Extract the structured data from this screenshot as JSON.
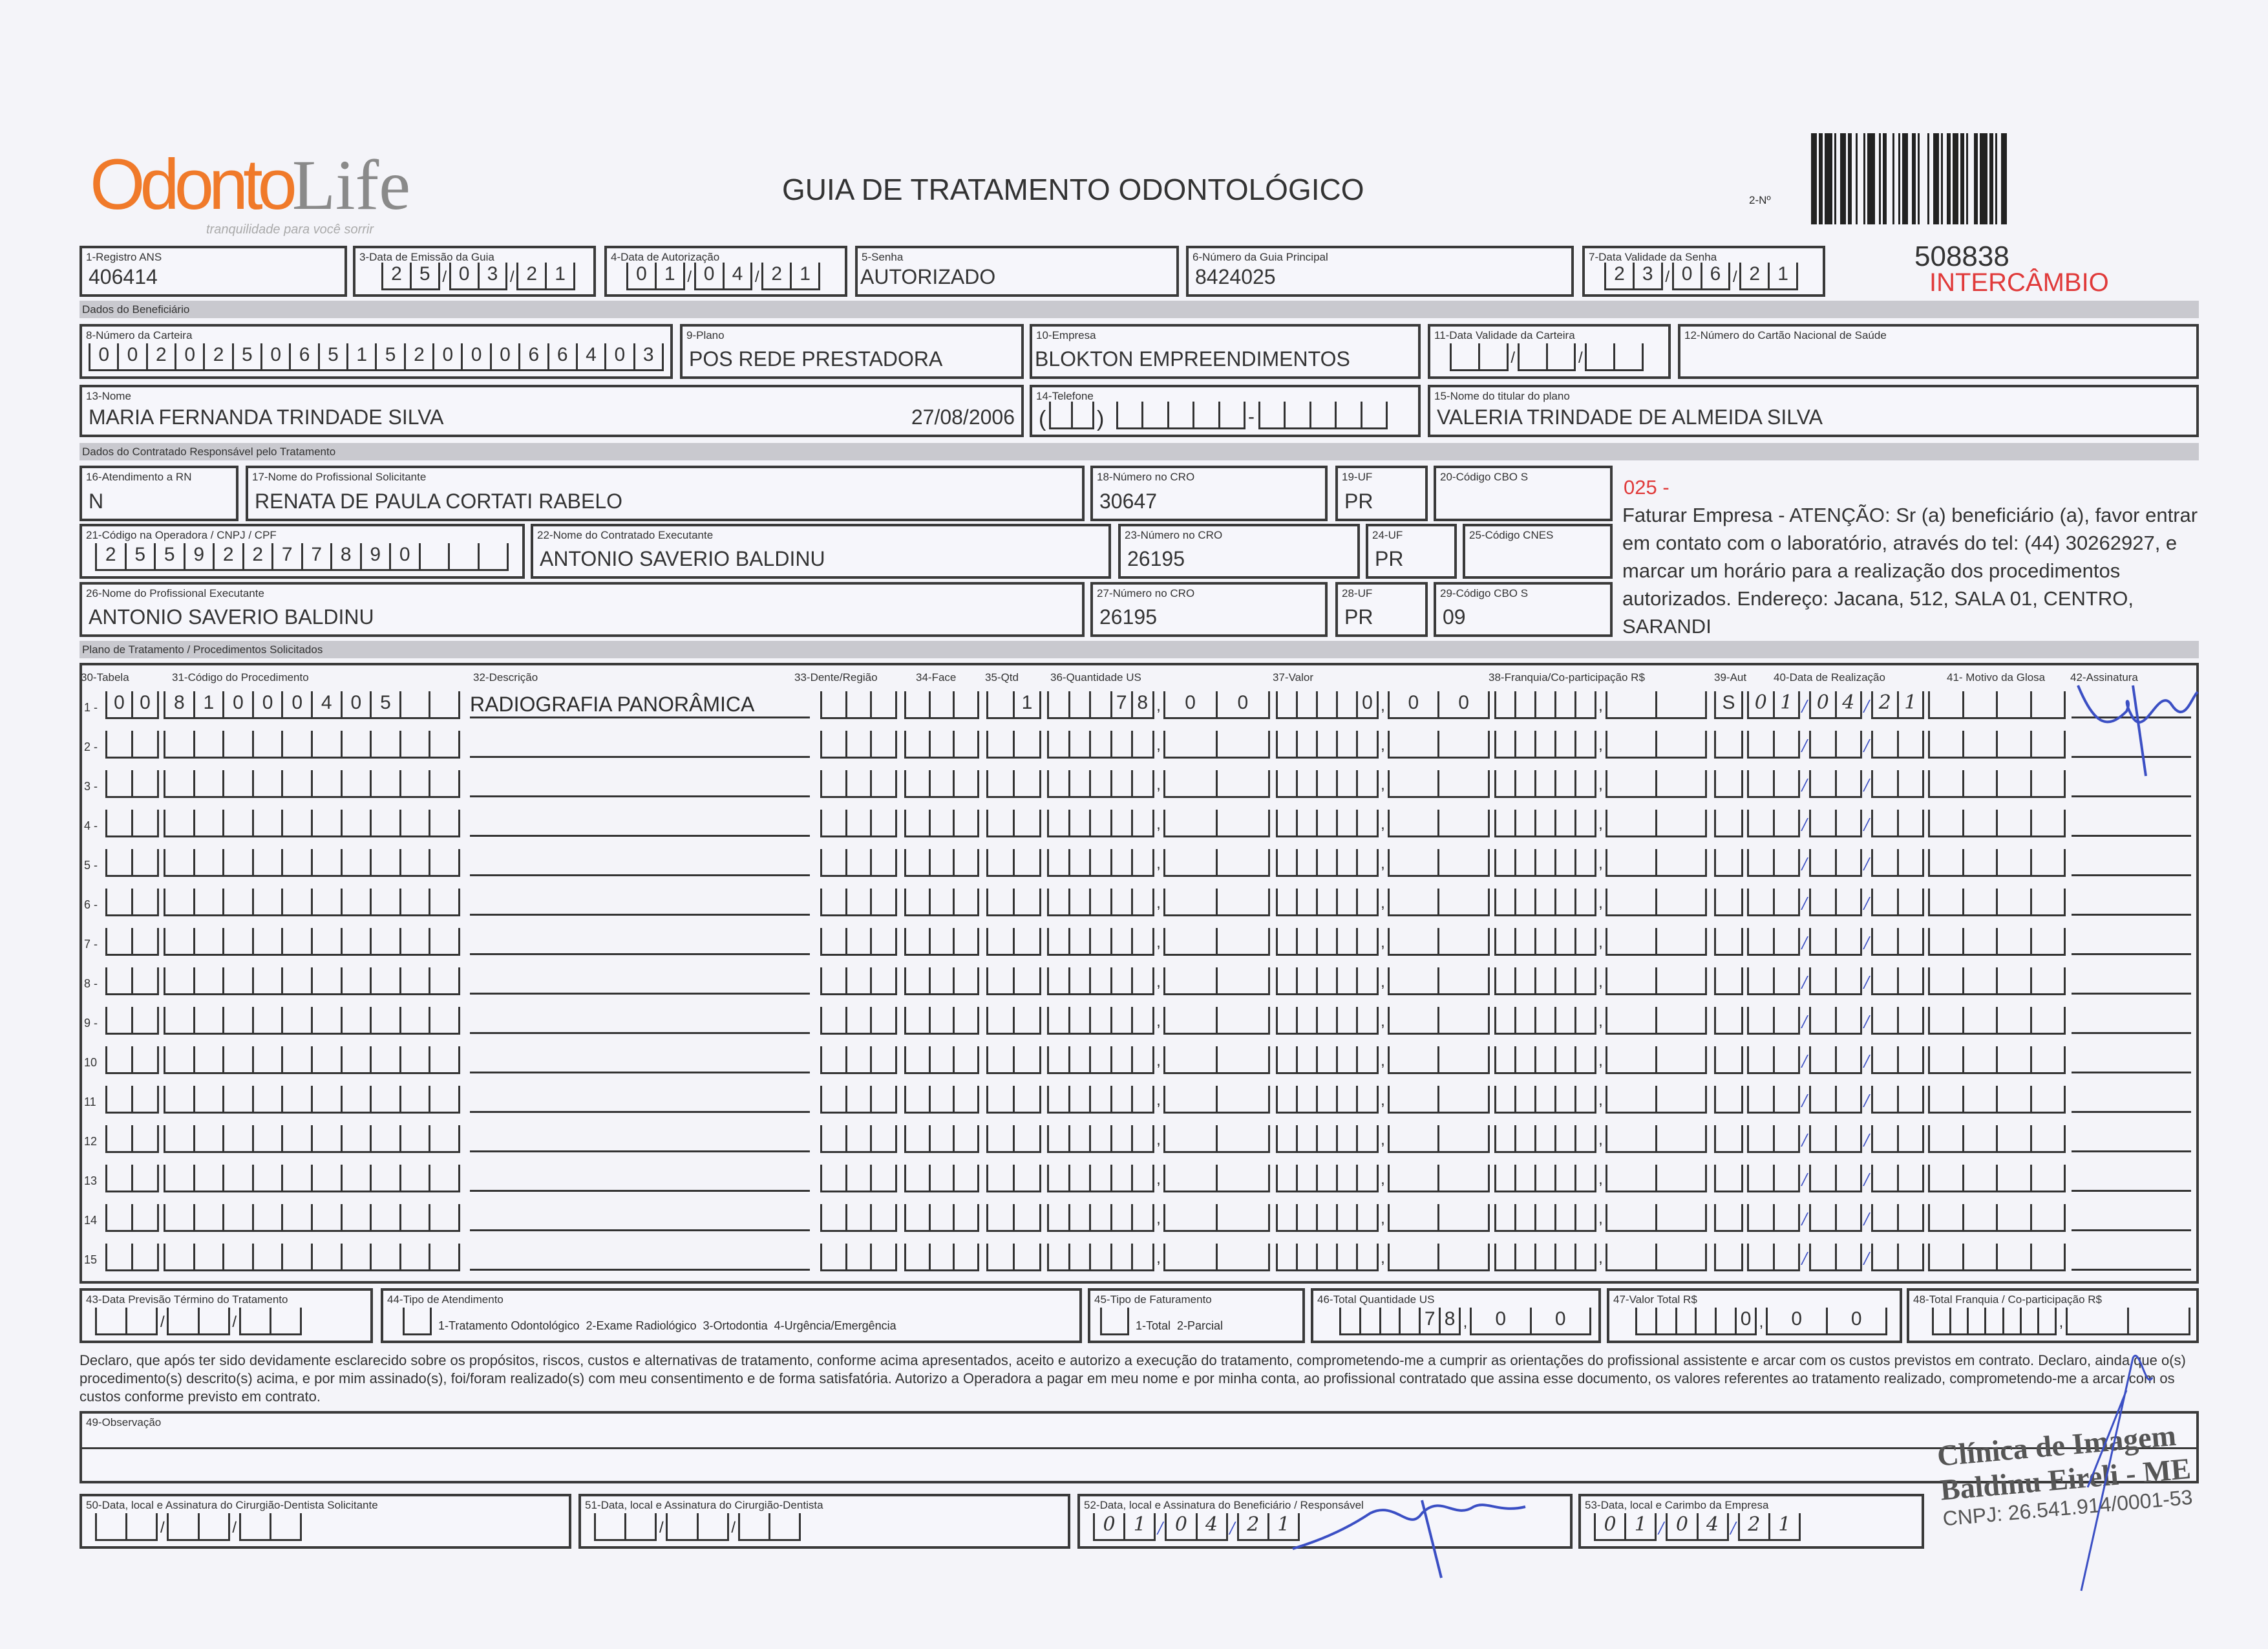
{
  "logo": {
    "brand_part1": "Odonto",
    "brand_part2": "Life",
    "tagline": "tranquilidade para você sorrir"
  },
  "header": {
    "title": "GUIA DE TRATAMENTO ODONTOLÓGICO",
    "guide_number_label": "2-Nº",
    "guide_number": "508838",
    "exchange_label": "INTERCÂMBIO",
    "exchange_color": "#e03a3a"
  },
  "fields": {
    "f1": {
      "label": "1-Registro ANS",
      "value": "406414"
    },
    "f3": {
      "label": "3-Data de Emissão da Guia",
      "value": "25/03/21"
    },
    "f4": {
      "label": "4-Data de Autorização",
      "value": "01/04/21"
    },
    "f5": {
      "label": "5-Senha",
      "value": "AUTORIZADO"
    },
    "f6": {
      "label": "6-Número da Guia Principal",
      "value": "8424025"
    },
    "f7": {
      "label": "7-Data Validade da Senha",
      "value": "23/06/21"
    },
    "section_beneficiary": "Dados do Beneficiário",
    "f8": {
      "label": "8-Número da Carteira",
      "value": "00202506515200066403"
    },
    "f9": {
      "label": "9-Plano",
      "value": "POS REDE PRESTADORA"
    },
    "f10": {
      "label": "10-Empresa",
      "value": "BLOKTON EMPREENDIMENTOS"
    },
    "f11": {
      "label": "11-Data Validade da Carteira",
      "value": ""
    },
    "f12": {
      "label": "12-Número do Cartão Nacional de Saúde",
      "value": ""
    },
    "f13": {
      "label": "13-Nome",
      "value": "MARIA FERNANDA TRINDADE SILVA",
      "birth_date": "27/08/2006"
    },
    "f14": {
      "label": "14-Telefone",
      "value": ""
    },
    "f15": {
      "label": "15-Nome do titular do plano",
      "value": "VALERIA TRINDADE DE ALMEIDA SILVA"
    },
    "section_contracted": "Dados do Contratado Responsável pelo Tratamento",
    "f16": {
      "label": "16-Atendimento a RN",
      "value": "N"
    },
    "f17": {
      "label": "17-Nome do Profissional Solicitante",
      "value": "RENATA DE PAULA CORTATI RABELO"
    },
    "f18": {
      "label": "18-Número no CRO",
      "value": "30647"
    },
    "f19": {
      "label": "19-UF",
      "value": "PR"
    },
    "f20": {
      "label": "20-Código CBO S",
      "value": ""
    },
    "f21": {
      "label": "21-Código na Operadora / CNPJ / CPF",
      "value": "25592277890"
    },
    "f22": {
      "label": "22-Nome do Contratado Executante",
      "value": "ANTONIO SAVERIO BALDINU"
    },
    "f23": {
      "label": "23-Número no CRO",
      "value": "26195"
    },
    "f24": {
      "label": "24-UF",
      "value": "PR"
    },
    "f25": {
      "label": "25-Código CNES",
      "value": ""
    },
    "f26": {
      "label": "26-Nome do Profissional Executante",
      "value": "ANTONIO SAVERIO BALDINU"
    },
    "f27": {
      "label": "27-Número no CRO",
      "value": "26195"
    },
    "f28": {
      "label": "28-UF",
      "value": "PR"
    },
    "f29": {
      "label": "29-Código CBO S",
      "value": "09"
    }
  },
  "notice": {
    "code": "025 -",
    "text": "Faturar Empresa - ATENÇÃO: Sr (a) beneficiário (a), favor entrar em contato com o laboratório, através do tel: (44) 30262927, e marcar um horário para a realização dos procedimentos autorizados. Endereço: Jacana, 512, SALA 01, CENTRO, SARANDI"
  },
  "table": {
    "section": "Plano de Tratamento / Procedimentos Solicitados",
    "headers": [
      "30-Tabela",
      "31-Código do Procedimento",
      "32-Descrição",
      "33-Dente/Região",
      "34-Face",
      "35-Qtd",
      "36-Quantidade US",
      "37-Valor",
      "38-Franquia/Co-participação R$",
      "39-Aut",
      "40-Data de Realização",
      "41- Motivo da Glosa",
      "42-Assinatura"
    ],
    "rows": [
      {
        "num": "1 -",
        "tabela": "00",
        "codigo": "81000405",
        "descricao": "RADIOGRAFIA PANORÂMICA",
        "dente": "",
        "face": "",
        "qtd": "1",
        "qtd_us": "78,00",
        "valor": "0,00",
        "franquia": "",
        "aut": "S",
        "data": "01/04/21",
        "motivo": ""
      },
      {
        "num": "2 -"
      },
      {
        "num": "3 -"
      },
      {
        "num": "4 -"
      },
      {
        "num": "5 -"
      },
      {
        "num": "6 -"
      },
      {
        "num": "7 -"
      },
      {
        "num": "8 -"
      },
      {
        "num": "9 -"
      },
      {
        "num": "10"
      },
      {
        "num": "11"
      },
      {
        "num": "12"
      },
      {
        "num": "13"
      },
      {
        "num": "14"
      },
      {
        "num": "15"
      }
    ]
  },
  "totals": {
    "f43": {
      "label": "43-Data Previsão Término do Tratamento",
      "value": ""
    },
    "f44": {
      "label": "44-Tipo de Atendimento",
      "options": "1-Tratamento Odontológico  2-Exame Radiológico  3-Ortodontia  4-Urgência/Emergência",
      "value": ""
    },
    "f45": {
      "label": "45-Tipo de Faturamento",
      "options": "1-Total  2-Parcial",
      "value": ""
    },
    "f46": {
      "label": "46-Total Quantidade US",
      "value": "78,00"
    },
    "f47": {
      "label": "47-Valor Total R$",
      "value": "0,00"
    },
    "f48": {
      "label": "48-Total Franquia / Co-participação R$",
      "value": ""
    }
  },
  "declaration": "Declaro, que após ter sido devidamente esclarecido sobre os propósitos, riscos, custos e alternativas de tratamento, conforme acima apresentados, aceito e autorizo a execução do tratamento, comprometendo-me a cumprir as orientações do profissional assistente e arcar com os custos previstos em contrato. Declaro, ainda que o(s) procedimento(s) descrito(s) acima, e por mim assinado(s), foi/foram realizado(s) com meu consentimento e de forma satisfatória. Autorizo a Operadora a pagar em meu nome e por minha conta, ao profissional contratado que assina esse documento, os valores referentes ao tratamento realizado, comprometendo-me a arcar com os custos conforme previsto em contrato.",
  "observation": {
    "label": "49-Observação",
    "value": ""
  },
  "signatures": {
    "f50": {
      "label": "50-Data, local e Assinatura do Cirurgião-Dentista Solicitante",
      "value": ""
    },
    "f51": {
      "label": "51-Data, local e Assinatura do Cirurgião-Dentista",
      "value": ""
    },
    "f52": {
      "label": "52-Data, local e Assinatura do Beneficiário / Responsável",
      "value": "01/04/21"
    },
    "f53": {
      "label": "53-Data, local e Carimbo da Empresa",
      "value": "01/04/21"
    }
  },
  "stamp": {
    "line1": "Clínica de Imagem",
    "line2": "Baldinu Eireli - ME",
    "line3": "CNPJ: 26.541.914/0001-53"
  },
  "colors": {
    "brand_orange": "#f07a2a",
    "ink_blue": "#3b4fc4",
    "alert_red": "#e03a3a"
  }
}
